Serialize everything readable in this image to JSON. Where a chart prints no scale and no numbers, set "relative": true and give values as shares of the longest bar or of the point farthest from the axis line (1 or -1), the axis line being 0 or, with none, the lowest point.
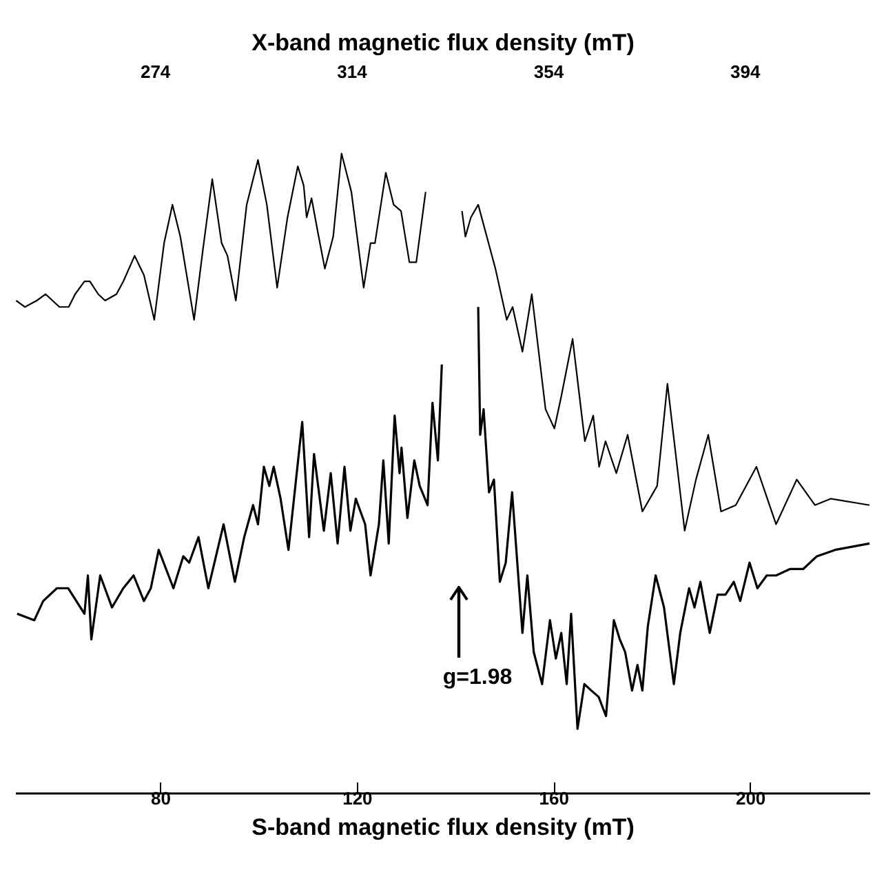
{
  "chart_data": {
    "type": "line",
    "relative": true,
    "xlabel": "S-band magnetic flux density (mT)",
    "x2label": "X-band magnetic flux density (mT)",
    "xlim": [
      50.5,
      224.3
    ],
    "xticks": [
      80,
      120,
      160,
      200
    ],
    "x2lim": [
      245.6,
      419.4
    ],
    "x2ticks": [
      274,
      314,
      354,
      394
    ],
    "series": [
      {
        "color": "#000000",
        "x": [
          50.9,
          54.4,
          56.2,
          59.0,
          61.3,
          64.6,
          65.3,
          66.0,
          67.8,
          70.2,
          72.5,
          74.6,
          76.7,
          78.1,
          79.7,
          82.7,
          84.7,
          85.9,
          87.8,
          89.8,
          92.9,
          95.2,
          97.1,
          98.9,
          99.9,
          101.1,
          102.2,
          103.1,
          104.5,
          106.1,
          108.9,
          110.3,
          111.3,
          113.3,
          114.7,
          116.1,
          117.5,
          118.7,
          119.8,
          121.7,
          122.8,
          124.5,
          125.4,
          126.5,
          127.7,
          128.7,
          129.1,
          130.3,
          131.7,
          132.8,
          134.4,
          135.4,
          136.5,
          137.3,
          140.0,
          144.7,
          145.1,
          145.8,
          146.9,
          147.9,
          149.1,
          150.3,
          151.6,
          153.7,
          154.7,
          156.0,
          157.7,
          159.3,
          160.5,
          161.6,
          162.7,
          163.6,
          164.9,
          166.3,
          167.7,
          169.2,
          170.7,
          172.3,
          173.5,
          174.6,
          176.0,
          177.1,
          178.1,
          179.2,
          180.8,
          182.5,
          184.5,
          185.8,
          187.6,
          188.7,
          189.9,
          191.8,
          193.4,
          195.0,
          196.7,
          198.0,
          199.9,
          201.5,
          203.4,
          205.3,
          208.1,
          210.8,
          213.6,
          217.3,
          224.3
        ],
        "values": [
          0.28,
          0.27,
          0.3,
          0.32,
          0.32,
          0.28,
          0.34,
          0.24,
          0.34,
          0.29,
          0.32,
          0.34,
          0.3,
          0.32,
          0.38,
          0.32,
          0.37,
          0.36,
          0.4,
          0.32,
          0.42,
          0.33,
          0.4,
          0.45,
          0.42,
          0.51,
          0.48,
          0.51,
          0.46,
          0.38,
          0.58,
          0.4,
          0.53,
          0.41,
          0.5,
          0.39,
          0.51,
          0.41,
          0.46,
          0.42,
          0.34,
          0.42,
          0.52,
          0.39,
          0.59,
          0.5,
          0.54,
          0.43,
          0.52,
          0.48,
          0.45,
          0.61,
          0.52,
          0.67,
          null,
          0.76,
          0.56,
          0.6,
          0.47,
          0.49,
          0.33,
          0.36,
          0.47,
          0.25,
          0.34,
          0.22,
          0.17,
          0.27,
          0.21,
          0.25,
          0.17,
          0.28,
          0.1,
          0.17,
          0.16,
          0.15,
          0.12,
          0.27,
          0.24,
          0.22,
          0.16,
          0.2,
          0.16,
          0.26,
          0.34,
          0.29,
          0.17,
          0.25,
          0.32,
          0.29,
          0.33,
          0.25,
          0.31,
          0.31,
          0.33,
          0.3,
          0.36,
          0.32,
          0.34,
          0.34,
          0.35,
          0.35,
          0.37,
          0.38,
          0.39
        ]
      },
      {
        "color": "#000000",
        "axis": "x2",
        "x": [
          245.8,
          247.6,
          250.0,
          251.8,
          254.6,
          256.5,
          257.8,
          259.7,
          260.8,
          262.5,
          263.9,
          266.2,
          267.6,
          269.9,
          271.8,
          273.9,
          275.9,
          277.6,
          279.2,
          282.0,
          283.8,
          285.7,
          287.6,
          288.8,
          290.5,
          292.7,
          295.0,
          296.8,
          298.9,
          301.0,
          303.1,
          304.3,
          304.9,
          305.9,
          307.1,
          308.6,
          310.3,
          312.0,
          314.0,
          316.5,
          317.9,
          318.8,
          321.0,
          322.6,
          324.1,
          325.8,
          327.2,
          329.1,
          333.0,
          336.5,
          337.2,
          338.3,
          339.8,
          341.9,
          343.3,
          345.6,
          346.8,
          348.8,
          350.7,
          353.5,
          355.3,
          356.7,
          359.0,
          361.5,
          363.2,
          364.4,
          365.7,
          367.9,
          370.2,
          373.2,
          376.2,
          378.3,
          381.8,
          384.1,
          386.6,
          389.2,
          392.2,
          396.4,
          400.4,
          404.6,
          408.3,
          411.5,
          419.4
        ],
        "values": [
          0.77,
          0.76,
          0.77,
          0.78,
          0.76,
          0.76,
          0.78,
          0.8,
          0.8,
          0.78,
          0.77,
          0.78,
          0.8,
          0.84,
          0.81,
          0.74,
          0.86,
          0.92,
          0.87,
          0.74,
          0.85,
          0.96,
          0.86,
          0.84,
          0.77,
          0.92,
          0.99,
          0.92,
          0.79,
          0.9,
          0.98,
          0.95,
          0.9,
          0.93,
          0.88,
          0.82,
          0.87,
          1.0,
          0.94,
          0.79,
          0.86,
          0.86,
          0.97,
          0.92,
          0.91,
          0.83,
          0.83,
          0.94,
          null,
          0.91,
          0.87,
          0.9,
          0.92,
          0.86,
          0.82,
          0.74,
          0.76,
          0.69,
          0.78,
          0.6,
          0.57,
          0.62,
          0.71,
          0.55,
          0.59,
          0.51,
          0.55,
          0.5,
          0.56,
          0.44,
          0.48,
          0.64,
          0.41,
          0.49,
          0.56,
          0.44,
          0.45,
          0.51,
          0.42,
          0.49,
          0.45,
          0.46,
          0.45
        ]
      }
    ],
    "annotations": [
      "g=1.98"
    ]
  }
}
